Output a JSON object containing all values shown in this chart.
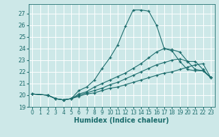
{
  "xlabel": "Humidex (Indice chaleur)",
  "bg_color": "#cde8e8",
  "grid_color": "#b0d0d0",
  "line_color": "#1a6b6b",
  "xlim": [
    -0.5,
    23.5
  ],
  "ylim": [
    19.0,
    27.8
  ],
  "yticks": [
    19,
    20,
    21,
    22,
    23,
    24,
    25,
    26,
    27
  ],
  "xticks": [
    0,
    1,
    2,
    3,
    4,
    5,
    6,
    7,
    8,
    9,
    10,
    11,
    12,
    13,
    14,
    15,
    16,
    17,
    18,
    19,
    20,
    21,
    22,
    23
  ],
  "series": [
    {
      "x": [
        0,
        2,
        3,
        4,
        5,
        6,
        7,
        8,
        9,
        10,
        11,
        12,
        13,
        14,
        15,
        16,
        17,
        18,
        19,
        20,
        21,
        22,
        23
      ],
      "y": [
        20.1,
        20.0,
        19.7,
        19.6,
        19.7,
        20.4,
        20.7,
        21.3,
        22.3,
        23.2,
        24.3,
        25.9,
        27.3,
        27.3,
        27.2,
        26.0,
        24.0,
        23.8,
        22.9,
        22.2,
        22.1,
        22.1,
        21.5
      ]
    },
    {
      "x": [
        0,
        2,
        3,
        4,
        5,
        6,
        7,
        8,
        9,
        10,
        11,
        12,
        13,
        14,
        15,
        16,
        17,
        18,
        19,
        20,
        21,
        22,
        23
      ],
      "y": [
        20.1,
        20.0,
        19.7,
        19.6,
        19.7,
        20.1,
        20.3,
        20.7,
        21.0,
        21.3,
        21.6,
        21.9,
        22.3,
        22.7,
        23.2,
        23.7,
        24.0,
        23.9,
        23.7,
        22.9,
        22.2,
        22.1,
        21.5
      ]
    },
    {
      "x": [
        0,
        2,
        3,
        4,
        5,
        6,
        7,
        8,
        9,
        10,
        11,
        12,
        13,
        14,
        15,
        16,
        17,
        18,
        19,
        20,
        21,
        22,
        23
      ],
      "y": [
        20.1,
        20.0,
        19.7,
        19.6,
        19.7,
        20.0,
        20.2,
        20.4,
        20.6,
        20.9,
        21.1,
        21.4,
        21.7,
        22.0,
        22.3,
        22.6,
        22.8,
        23.0,
        23.1,
        22.9,
        22.9,
        22.2,
        21.5
      ]
    },
    {
      "x": [
        0,
        2,
        3,
        4,
        5,
        6,
        7,
        8,
        9,
        10,
        11,
        12,
        13,
        14,
        15,
        16,
        17,
        18,
        19,
        20,
        21,
        22,
        23
      ],
      "y": [
        20.1,
        20.0,
        19.7,
        19.6,
        19.7,
        19.9,
        20.1,
        20.2,
        20.4,
        20.6,
        20.7,
        20.9,
        21.1,
        21.3,
        21.5,
        21.7,
        21.9,
        22.0,
        22.2,
        22.4,
        22.6,
        22.7,
        21.5
      ]
    }
  ]
}
